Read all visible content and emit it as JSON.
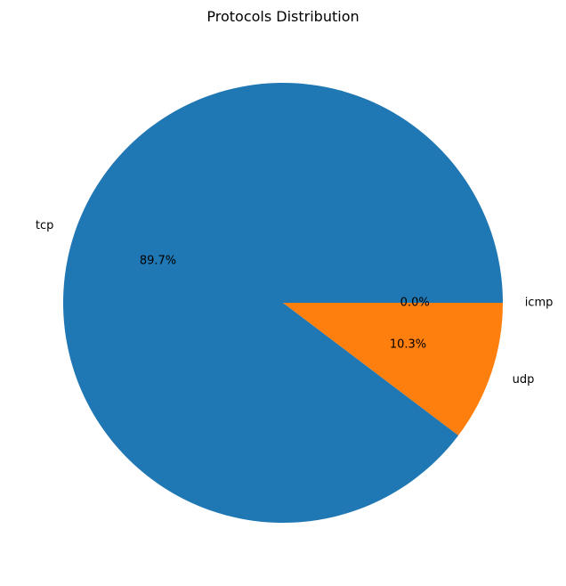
{
  "chart_data": {
    "type": "pie",
    "title": "Protocols Distribution",
    "start_angle_deg": 0,
    "direction": "counterclockwise",
    "slices": [
      {
        "label": "tcp",
        "value": 89.7,
        "pct_label": "89.7%",
        "color": "#1f77b4"
      },
      {
        "label": "udp",
        "value": 10.3,
        "pct_label": "10.3%",
        "color": "#ff7f0e"
      },
      {
        "label": "icmp",
        "value": 0.0,
        "pct_label": "0.0%",
        "color": "#2ca02c"
      }
    ]
  }
}
